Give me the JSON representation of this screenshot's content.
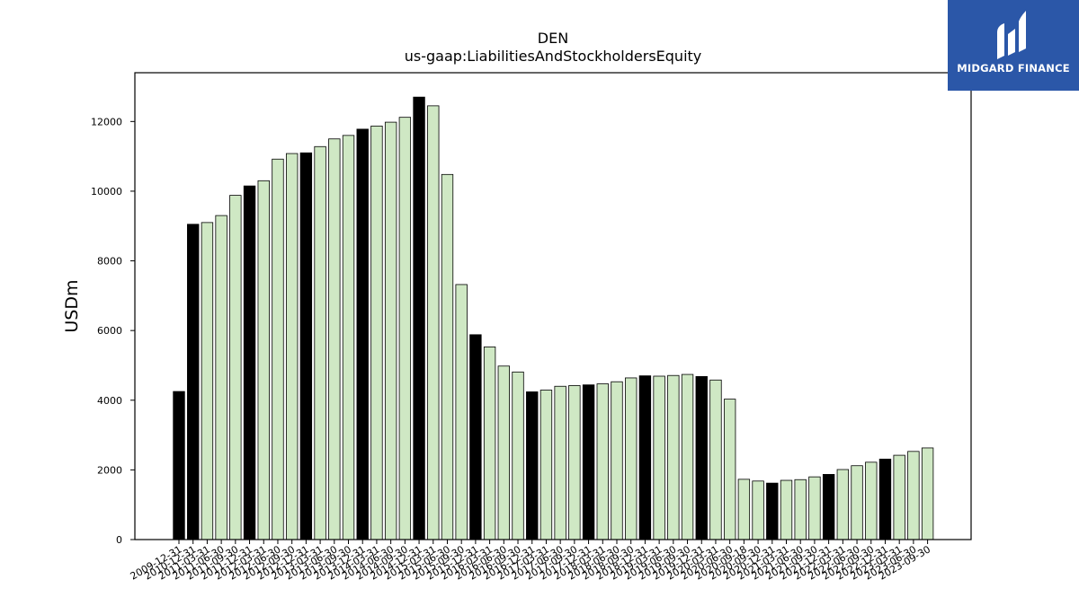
{
  "chart_data": {
    "type": "bar",
    "title": "DEN",
    "subtitle": "us-gaap:LiabilitiesAndStockholdersEquity",
    "xlabel": "",
    "ylabel": "USDm",
    "ylim": [
      0,
      13400
    ],
    "yticks": [
      0,
      2000,
      4000,
      6000,
      8000,
      10000,
      12000
    ],
    "grid": false,
    "colors": {
      "annual": "#000000",
      "quarterly": "#cfe8c4",
      "edge": "#000000"
    },
    "categories": [
      "2009-12-31",
      "2010-12-31",
      "2011-03-31",
      "2011-06-30",
      "2011-09-30",
      "2011-12-31",
      "2012-03-31",
      "2012-06-30",
      "2012-09-30",
      "2012-12-31",
      "2013-03-31",
      "2013-06-30",
      "2013-09-30",
      "2013-12-31",
      "2014-03-31",
      "2014-06-30",
      "2014-09-30",
      "2014-12-31",
      "2015-03-31",
      "2015-06-30",
      "2015-09-30",
      "2015-12-31",
      "2016-03-31",
      "2016-06-30",
      "2016-09-30",
      "2016-12-31",
      "2017-03-31",
      "2017-06-30",
      "2017-09-30",
      "2017-12-31",
      "2018-03-31",
      "2018-06-30",
      "2018-09-30",
      "2018-12-31",
      "2019-03-31",
      "2019-06-30",
      "2019-09-30",
      "2019-12-31",
      "2020-03-31",
      "2020-06-30",
      "2020-09-18",
      "2020-09-30",
      "2020-12-31",
      "2021-03-31",
      "2021-06-30",
      "2021-09-30",
      "2021-12-31",
      "2022-03-31",
      "2022-06-30",
      "2022-09-30",
      "2022-12-31",
      "2023-03-31",
      "2023-06-30",
      "2023-09-30"
    ],
    "values": [
      4250,
      9050,
      9100,
      9300,
      9880,
      10150,
      10300,
      10920,
      11080,
      11100,
      11280,
      11500,
      11600,
      11780,
      11870,
      11980,
      12120,
      12700,
      12450,
      10480,
      7320,
      5880,
      5530,
      4980,
      4810,
      4240,
      4290,
      4400,
      4420,
      4440,
      4470,
      4530,
      4640,
      4700,
      4690,
      4710,
      4740,
      4680,
      4580,
      4030,
      1730,
      1680,
      1620,
      1700,
      1720,
      1800,
      1870,
      2010,
      2120,
      2220,
      2310,
      2420,
      2530,
      2630
    ],
    "annual": [
      true,
      true,
      false,
      false,
      false,
      true,
      false,
      false,
      false,
      true,
      false,
      false,
      false,
      true,
      false,
      false,
      false,
      true,
      false,
      false,
      false,
      true,
      false,
      false,
      false,
      true,
      false,
      false,
      false,
      true,
      false,
      false,
      false,
      true,
      false,
      false,
      false,
      true,
      false,
      false,
      false,
      false,
      true,
      false,
      false,
      false,
      true,
      false,
      false,
      false,
      true,
      false,
      false,
      false
    ]
  },
  "logo": {
    "text": "MIDGARD FINANCE",
    "icon": "midgard-logo-icon"
  }
}
